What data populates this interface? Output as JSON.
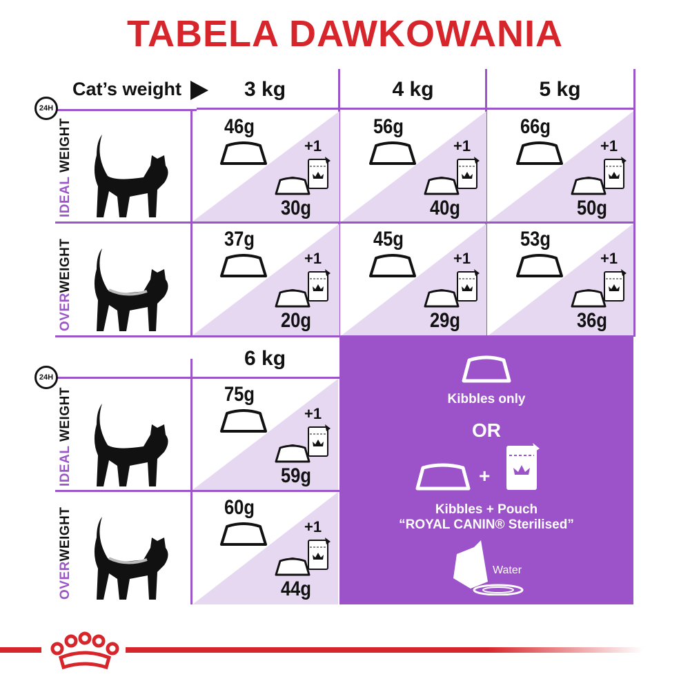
{
  "title": "TABELA DAWKOWANIA",
  "header": {
    "cats_weight": "Cat’s weight",
    "clock_label": "24H"
  },
  "weights": [
    "3 kg",
    "4 kg",
    "5 kg",
    "6 kg"
  ],
  "row_labels": {
    "ideal": {
      "accent": "IDEAL",
      "rest": " WEIGHT"
    },
    "over": {
      "accent": "OVER",
      "rest": "WEIGHT"
    }
  },
  "plus_one": "+1",
  "table": [
    {
      "weight": "3 kg",
      "ideal": {
        "kibbles": "46g",
        "mixed": "30g"
      },
      "over": {
        "kibbles": "37g",
        "mixed": "20g"
      }
    },
    {
      "weight": "4 kg",
      "ideal": {
        "kibbles": "56g",
        "mixed": "40g"
      },
      "over": {
        "kibbles": "45g",
        "mixed": "29g"
      }
    },
    {
      "weight": "5 kg",
      "ideal": {
        "kibbles": "66g",
        "mixed": "50g"
      },
      "over": {
        "kibbles": "53g",
        "mixed": "36g"
      }
    },
    {
      "weight": "6 kg",
      "ideal": {
        "kibbles": "75g",
        "mixed": "59g"
      },
      "over": {
        "kibbles": "60g",
        "mixed": "44g"
      }
    }
  ],
  "legend": {
    "kibbles_only": "Kibbles only",
    "or": "OR",
    "plus": "+",
    "kibbles_pouch": "Kibbles + Pouch",
    "product": "“ROYAL CANIN® Sterilised”",
    "water": "Water"
  },
  "colors": {
    "title": "#d7262b",
    "accent": "#9b55c8",
    "lavender": "#e7d8f2",
    "box": "#9c52c8"
  },
  "icons": [
    "clock-24h-icon",
    "cat-silhouette-icon",
    "food-bowl-icon",
    "pouch-icon",
    "royal-canin-crown-logo",
    "water-bowl-icon"
  ]
}
